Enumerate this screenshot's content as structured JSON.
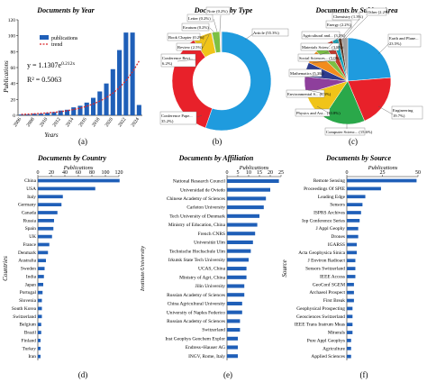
{
  "figure": {
    "panel_labels": [
      "(a)",
      "(b)",
      "(c)",
      "(d)",
      "(e)",
      "(f)"
    ]
  },
  "colors": {
    "bar": "#1f5fb8",
    "trend": "#d9262b",
    "axis": "#222222"
  },
  "chart_data": [
    {
      "type": "bar",
      "title": "Documents by Year",
      "xlabel": "Years",
      "ylabel": "Publications",
      "ylim": [
        0,
        120
      ],
      "yticks": [
        0,
        20,
        40,
        60,
        80,
        100,
        120
      ],
      "x": [
        "2006",
        "2007",
        "2008",
        "2009",
        "2010",
        "2011",
        "2012",
        "2013",
        "2014",
        "2015",
        "2016",
        "2017",
        "2018",
        "2019",
        "2020",
        "2021",
        "2022",
        "2023",
        "2024"
      ],
      "xtick_labels": [
        "2006",
        "2008",
        "2010",
        "2012",
        "2014",
        "2016",
        "2018",
        "2020",
        "2022",
        "2024"
      ],
      "series": [
        {
          "name": "publications",
          "kind": "bar",
          "values": [
            1,
            1,
            2,
            2,
            3,
            4,
            6,
            7,
            10,
            12,
            16,
            22,
            30,
            40,
            58,
            82,
            104,
            104,
            13
          ]
        },
        {
          "name": "trend",
          "kind": "dashed-line",
          "values": [
            1.2,
            1.5,
            1.9,
            2.4,
            3.0,
            3.7,
            4.6,
            5.8,
            7.3,
            9.1,
            11.4,
            14.3,
            17.9,
            22.3,
            27.9,
            34.9,
            43.6,
            54.5,
            68.1
          ]
        }
      ],
      "annotations": [
        "y = 1.1307e",
        "0.212x",
        "R² = 0.5063"
      ],
      "legend": "top-left",
      "grid": false
    },
    {
      "type": "pie",
      "title": "Documents by Type",
      "donut": true,
      "labels": [
        "Article (55.3%)",
        "Conference Pape... (35.2%)",
        "Conference Revi... (6.2%)",
        "Book Chapter (0.2%)",
        "Review (2.5%)",
        "Erratum (0.2%)",
        "Letter (0.2%)",
        "Note (0.2%)"
      ],
      "values": [
        55.3,
        35.2,
        6.2,
        0.2,
        2.5,
        0.2,
        0.2,
        0.2
      ],
      "colors": [
        "#1f9bde",
        "#e8212a",
        "#f0c419",
        "#2e3c8e",
        "#7cc043",
        "#f28c1e",
        "#8e3f9c",
        "#b7b7b7"
      ]
    },
    {
      "type": "pie",
      "title": "Documents by Subject Area",
      "donut": false,
      "labels": [
        "Earth and Plane... (23.5%)",
        "Engineering (19.7%)",
        "Computer Scienc... (15.6%)",
        "Physics and Ast... (10.8%)",
        "Environmental S... (6.3%)",
        "Mathematics (5.3%)",
        "Social Sciences... (5.0%)",
        "Materials Scien... (3.8%)",
        "Agricultural and... (3.3%)",
        "Energy (2.2%)",
        "Chemistry (1.3%)",
        "Other (2.2%)"
      ],
      "values": [
        23.5,
        19.7,
        15.6,
        10.8,
        6.3,
        5.3,
        5.0,
        3.8,
        3.3,
        2.2,
        1.3,
        2.2
      ],
      "colors": [
        "#1f9bde",
        "#e8212a",
        "#2aa84a",
        "#f0c419",
        "#8e3f9c",
        "#2e3c8e",
        "#f28c1e",
        "#7cc043",
        "#c0392b",
        "#17a2b8",
        "#5b3a29",
        "#9e9e9e"
      ]
    },
    {
      "type": "bar",
      "orientation": "horizontal",
      "title": "Documents by Country",
      "xlabel": "Publications",
      "ylabel": "Countries",
      "xlim": [
        0,
        120
      ],
      "xticks": [
        0,
        20,
        40,
        60,
        80,
        100,
        120
      ],
      "categories": [
        "China",
        "USA",
        "Italy",
        "Germany",
        "Canada",
        "Russia",
        "Spain",
        "UK",
        "France",
        "Denmark",
        "Australia",
        "Sweden",
        "India",
        "Japan",
        "Portugal",
        "Slovenia",
        "South Korea",
        "Switzerland",
        "Belgium",
        "Brazil",
        "Finland",
        "Turkey",
        "Iran"
      ],
      "values": [
        121,
        85,
        37,
        35,
        29,
        24,
        23,
        21,
        17,
        15,
        12,
        10,
        9,
        8,
        7,
        6,
        6,
        6,
        5,
        5,
        4,
        4,
        4
      ]
    },
    {
      "type": "bar",
      "orientation": "horizontal",
      "title": "Documents by Affiliation",
      "xlabel": "Publications",
      "ylabel": "Institute/University",
      "xlim": [
        0,
        25
      ],
      "xticks": [
        0,
        5,
        10,
        15,
        20,
        25
      ],
      "categories": [
        "National Research Council",
        "Universidad de Oviedo",
        "Chinese Academy of Sciences",
        "Carleton University",
        "Tech University of Denmark",
        "Ministry of Education, China",
        "French CNRS",
        "Universität Ulm",
        "Technische Hochschule Ulm",
        "Irkutsk State Tech University",
        "UCAS, China",
        "Ministry of Agri, China",
        "Jilin University",
        "Russian Academy of Sciences",
        "China Agricultural University",
        "University of Naples Federico",
        "Russian Academy of Sciences",
        "Switzerland",
        "Inst Geophys Geochem Explor",
        "Endress+Hauser AG",
        "INGV, Rome, Italy"
      ],
      "values": [
        24,
        20,
        18,
        17,
        15,
        14,
        13,
        12,
        11,
        10,
        9,
        9,
        8,
        8,
        7,
        7,
        6,
        6,
        5,
        5,
        5
      ]
    },
    {
      "type": "bar",
      "orientation": "horizontal",
      "title": "Documents by Source",
      "xlabel": "Publications",
      "ylabel": "Source",
      "xlim": [
        0,
        50
      ],
      "xticks": [
        0,
        25,
        50
      ],
      "categories": [
        "Remote Sensing",
        "Proceedings Of SPIE",
        "Leading Edge",
        "Sensors",
        "ISPRS Archives",
        "Iop Conference Series",
        "J Appl Geophy",
        "Drones",
        "IGARSS",
        "Acta Geophysica Sinica",
        "J Environ Radioact",
        "Sensors Switzerland",
        "IEEE Access",
        "GeoConf SGEM",
        "Archaeol Prospect",
        "First Break",
        "Geophysical Prospecting",
        "Geosciences Switzerland",
        "IEEE Trans Instrum Meas",
        "Minerals",
        "Pure Appl Geophys",
        "Agriculture",
        "Applied Sciences"
      ],
      "values": [
        49,
        24,
        13,
        11,
        10,
        9,
        8,
        8,
        7,
        7,
        6,
        6,
        6,
        5,
        5,
        5,
        4,
        4,
        4,
        4,
        3,
        3,
        3
      ]
    }
  ]
}
